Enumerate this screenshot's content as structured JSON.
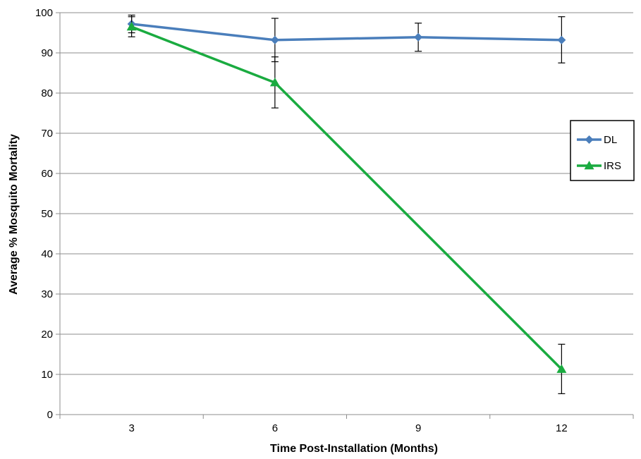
{
  "chart_data": {
    "type": "line",
    "categories": [
      "3",
      "6",
      "9",
      "12"
    ],
    "xlabel": "Time Post-Installation (Months)",
    "ylabel": "Average % Mosquito Mortality",
    "ylim": [
      0,
      100
    ],
    "yticks": [
      0,
      10,
      20,
      30,
      40,
      50,
      60,
      70,
      80,
      90,
      100
    ],
    "grid": "horizontal",
    "legend_position": "right",
    "series": [
      {
        "name": "DL",
        "color": "#4a7ebb",
        "marker": "diamond",
        "values": [
          97.2,
          93.2,
          93.9,
          93.2
        ],
        "error": [
          [
            95.0,
            99.4
          ],
          [
            87.8,
            98.6
          ],
          [
            90.4,
            97.4
          ],
          [
            87.5,
            99.0
          ]
        ]
      },
      {
        "name": "IRS",
        "color": "#1aab40",
        "marker": "triangle",
        "values": [
          96.5,
          82.6,
          null,
          11.3
        ],
        "connect_gaps": true,
        "error": [
          [
            94.0,
            99.0
          ],
          [
            76.3,
            89.0
          ],
          null,
          [
            5.2,
            17.5
          ]
        ]
      }
    ]
  }
}
